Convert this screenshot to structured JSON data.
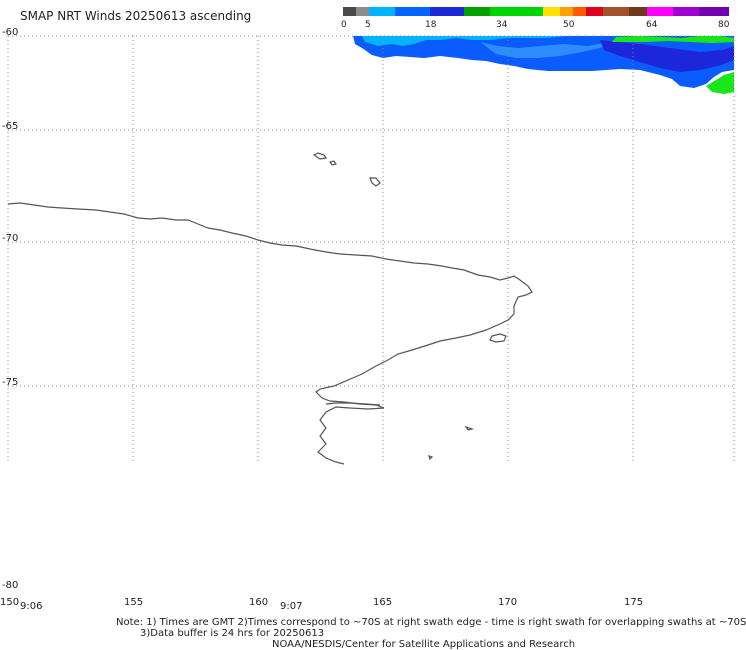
{
  "title": "SMAP NRT Winds 20250613 ascending",
  "wind_scale": {
    "labels": [
      "0",
      "5",
      "18",
      "34",
      "50",
      "64",
      "80"
    ],
    "colors": [
      "#4a4a4a",
      "#8c8c8c",
      "#00b4ff",
      "#0064ff",
      "#1b27d8",
      "#00a000",
      "#00d400",
      "#ffe000",
      "#ffa000",
      "#ff5a00",
      "#e00020",
      "#a0522d",
      "#6e3a1e",
      "#ff00ff",
      "#a000d0",
      "#7000b0"
    ]
  },
  "map": {
    "latitude_labels": [
      "-60",
      "-65",
      "-70",
      "-75",
      "-80"
    ],
    "longitude_labels": [
      "150",
      "155",
      "160",
      "165",
      "170",
      "175"
    ],
    "swath_times": [
      "9:06",
      "9:07"
    ]
  },
  "notes": {
    "line1": "Note: 1) Times are GMT 2)Times correspond to ~70S at right swath edge - time is right swath for overlapping swaths at ~70S",
    "line2": "3)Data buffer is 24 hrs for 20250613",
    "line3": "NOAA/NESDIS/Center for Satellite Applications and Research"
  },
  "colors": {
    "wind_blue": "#0a5cff",
    "wind_light_blue": "#00b4ff",
    "wind_dark_blue": "#1b27d8",
    "wind_green": "#19e619",
    "coastline": "#555555",
    "grid": "#888888"
  }
}
